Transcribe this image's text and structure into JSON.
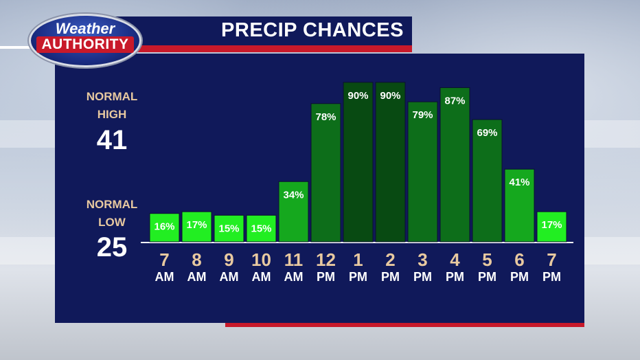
{
  "title": "PRECIP CHANCES",
  "logo": {
    "line1": "Weather",
    "line2": "AUTHORITY"
  },
  "normal_high": {
    "label1": "NORMAL",
    "label2": "HIGH",
    "value": "41"
  },
  "normal_low": {
    "label1": "NORMAL",
    "label2": "LOW",
    "value": "25"
  },
  "colors": {
    "panel": "#10195a",
    "accent_red": "#c8192a",
    "label_tan": "#e8c9a0",
    "bar_light": "#22ee22",
    "bar_mid": "#15a81e",
    "bar_dark": "#0d6e1a",
    "bar_darkest": "#084a12"
  },
  "chart_data": {
    "type": "bar",
    "title": "PRECIP CHANCES",
    "categories": [
      {
        "hour": "7",
        "ampm": "AM"
      },
      {
        "hour": "8",
        "ampm": "AM"
      },
      {
        "hour": "9",
        "ampm": "AM"
      },
      {
        "hour": "10",
        "ampm": "AM"
      },
      {
        "hour": "11",
        "ampm": "AM"
      },
      {
        "hour": "12",
        "ampm": "PM"
      },
      {
        "hour": "1",
        "ampm": "PM"
      },
      {
        "hour": "2",
        "ampm": "PM"
      },
      {
        "hour": "3",
        "ampm": "PM"
      },
      {
        "hour": "4",
        "ampm": "PM"
      },
      {
        "hour": "5",
        "ampm": "PM"
      },
      {
        "hour": "6",
        "ampm": "PM"
      },
      {
        "hour": "7",
        "ampm": "PM"
      }
    ],
    "values": [
      16,
      17,
      15,
      15,
      34,
      78,
      90,
      90,
      79,
      87,
      69,
      41,
      17
    ],
    "value_labels": [
      "16%",
      "17%",
      "15%",
      "15%",
      "34%",
      "78%",
      "90%",
      "90%",
      "79%",
      "87%",
      "69%",
      "41%",
      "17%"
    ],
    "ylim": [
      0,
      100
    ],
    "grid": false
  }
}
